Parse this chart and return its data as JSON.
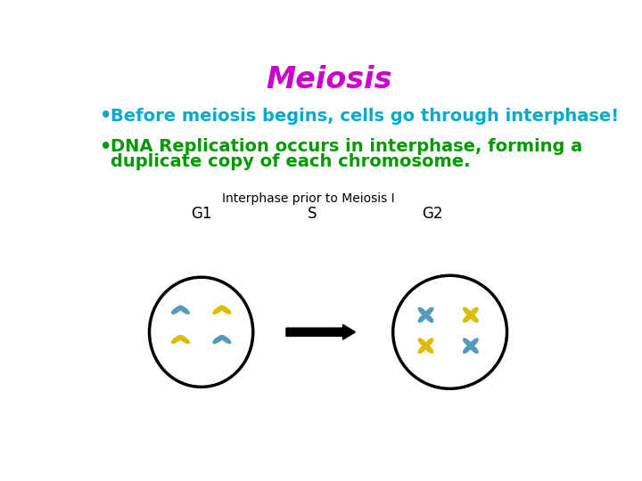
{
  "title": "Meiosis",
  "title_color": "#CC00CC",
  "title_fontsize": 24,
  "bullet1": "Before meiosis begins, cells go through interphase!",
  "bullet1_color": "#00AACC",
  "bullet2_line1": "DNA Replication occurs in interphase, forming a",
  "bullet2_line2": "duplicate copy of each chromosome.",
  "bullet2_color": "#009900",
  "bullet_fontsize": 14,
  "diagram_label": "Interphase prior to Meiosis I",
  "diagram_label_color": "#000000",
  "diagram_label_fontsize": 10,
  "phase_labels": [
    "G1",
    "S",
    "G2"
  ],
  "phase_label_fontsize": 12,
  "chrom_blue": "#5599BB",
  "chrom_yellow": "#DDBB00",
  "background_color": "#FFFFFF"
}
